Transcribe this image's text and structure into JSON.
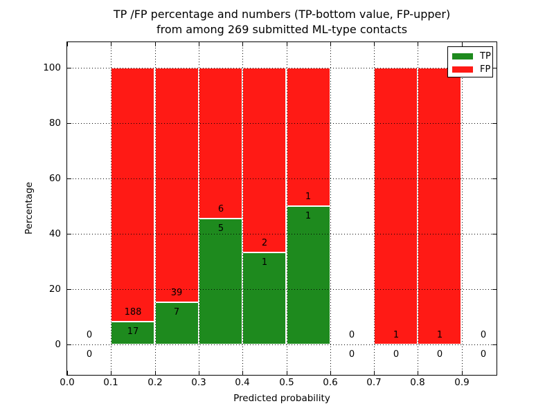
{
  "chart_data": {
    "type": "bar",
    "stacked": true,
    "title_lines": [
      "TP /FP percentage and numbers (TP-bottom value, FP-upper)",
      "from among 269 submitted ML-type contacts"
    ],
    "xlabel": "Predicted probability",
    "ylabel": "Percentage",
    "total_contacts": 269,
    "x_ticks": [
      "0.0",
      "0.1",
      "0.2",
      "0.3",
      "0.4",
      "0.5",
      "0.6",
      "0.7",
      "0.8",
      "0.9"
    ],
    "y_ticks": [
      0,
      20,
      40,
      60,
      80,
      100
    ],
    "xlim": [
      0.0,
      0.982
    ],
    "ylim": [
      -11,
      109.5
    ],
    "grid": "dotted, drawn above bars",
    "legend_position": "upper right",
    "legend": [
      {
        "label": "TP",
        "color": "#1e8a1e"
      },
      {
        "label": "FP",
        "color": "#ff1a15"
      }
    ],
    "bins": [
      {
        "x0": 0.0,
        "x1": 0.1,
        "tp": 0,
        "fp": 0
      },
      {
        "x0": 0.1,
        "x1": 0.2,
        "tp": 17,
        "fp": 188
      },
      {
        "x0": 0.2,
        "x1": 0.3,
        "tp": 7,
        "fp": 39
      },
      {
        "x0": 0.3,
        "x1": 0.4,
        "tp": 5,
        "fp": 6
      },
      {
        "x0": 0.4,
        "x1": 0.5,
        "tp": 1,
        "fp": 2
      },
      {
        "x0": 0.5,
        "x1": 0.6,
        "tp": 1,
        "fp": 1
      },
      {
        "x0": 0.6,
        "x1": 0.7,
        "tp": 0,
        "fp": 0
      },
      {
        "x0": 0.7,
        "x1": 0.8,
        "tp": 0,
        "fp": 1
      },
      {
        "x0": 0.8,
        "x1": 0.9,
        "tp": 0,
        "fp": 1
      },
      {
        "x0": 0.9,
        "x1": 1.0,
        "tp": 0,
        "fp": 0
      }
    ],
    "bar_value_rule": "TP count printed below green-bar top boundary, FP count printed above it; bars show TP/FP as percent of bin total"
  }
}
